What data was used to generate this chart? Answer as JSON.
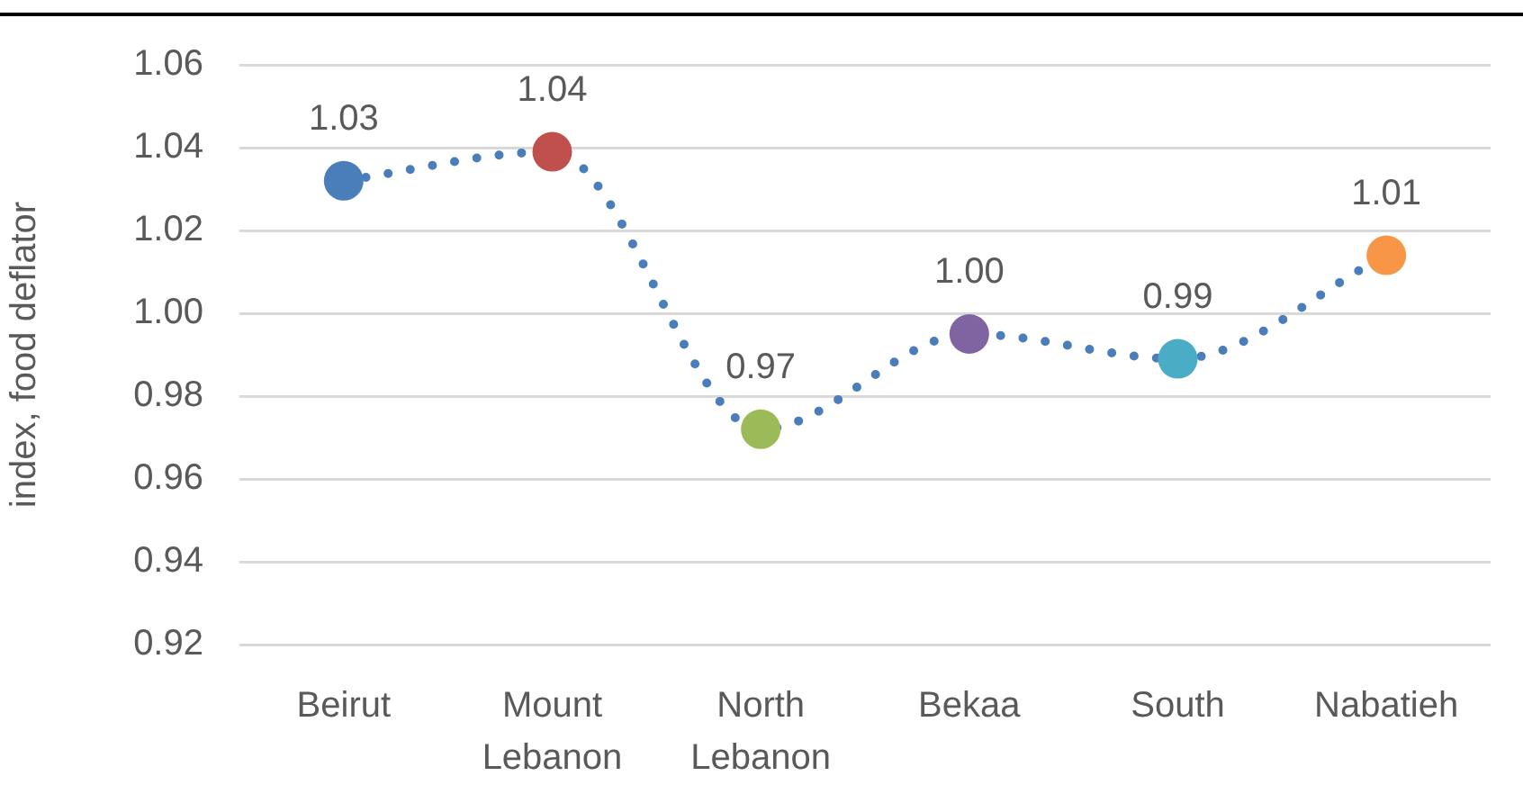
{
  "chart_data": {
    "type": "line",
    "ylabel": "index, food deflator",
    "categories": [
      "Beirut",
      "Mount Lebanon",
      "North Lebanon",
      "Bekaa",
      "South",
      "Nabatieh"
    ],
    "series": [
      {
        "color": "#4a7ebb",
        "colors": [
          "#4a7ebb",
          "#c0504d",
          "#9bbb59",
          "#8064a2",
          "#4bacc6",
          "#f79646"
        ],
        "values": [
          1.032,
          1.039,
          0.972,
          0.995,
          0.989,
          1.014
        ],
        "value_labels": [
          "1.03",
          "1.04",
          "0.97",
          "1.00",
          "0.99",
          "1.01"
        ]
      }
    ],
    "ylim": [
      0.92,
      1.06
    ],
    "yticks": [
      0.92,
      0.94,
      0.96,
      0.98,
      {
        "value": 1,
        "label": "1.00"
      },
      1.02,
      1.04,
      1.06
    ],
    "grid": "y",
    "marker": "circle",
    "line_style": "dotted"
  }
}
